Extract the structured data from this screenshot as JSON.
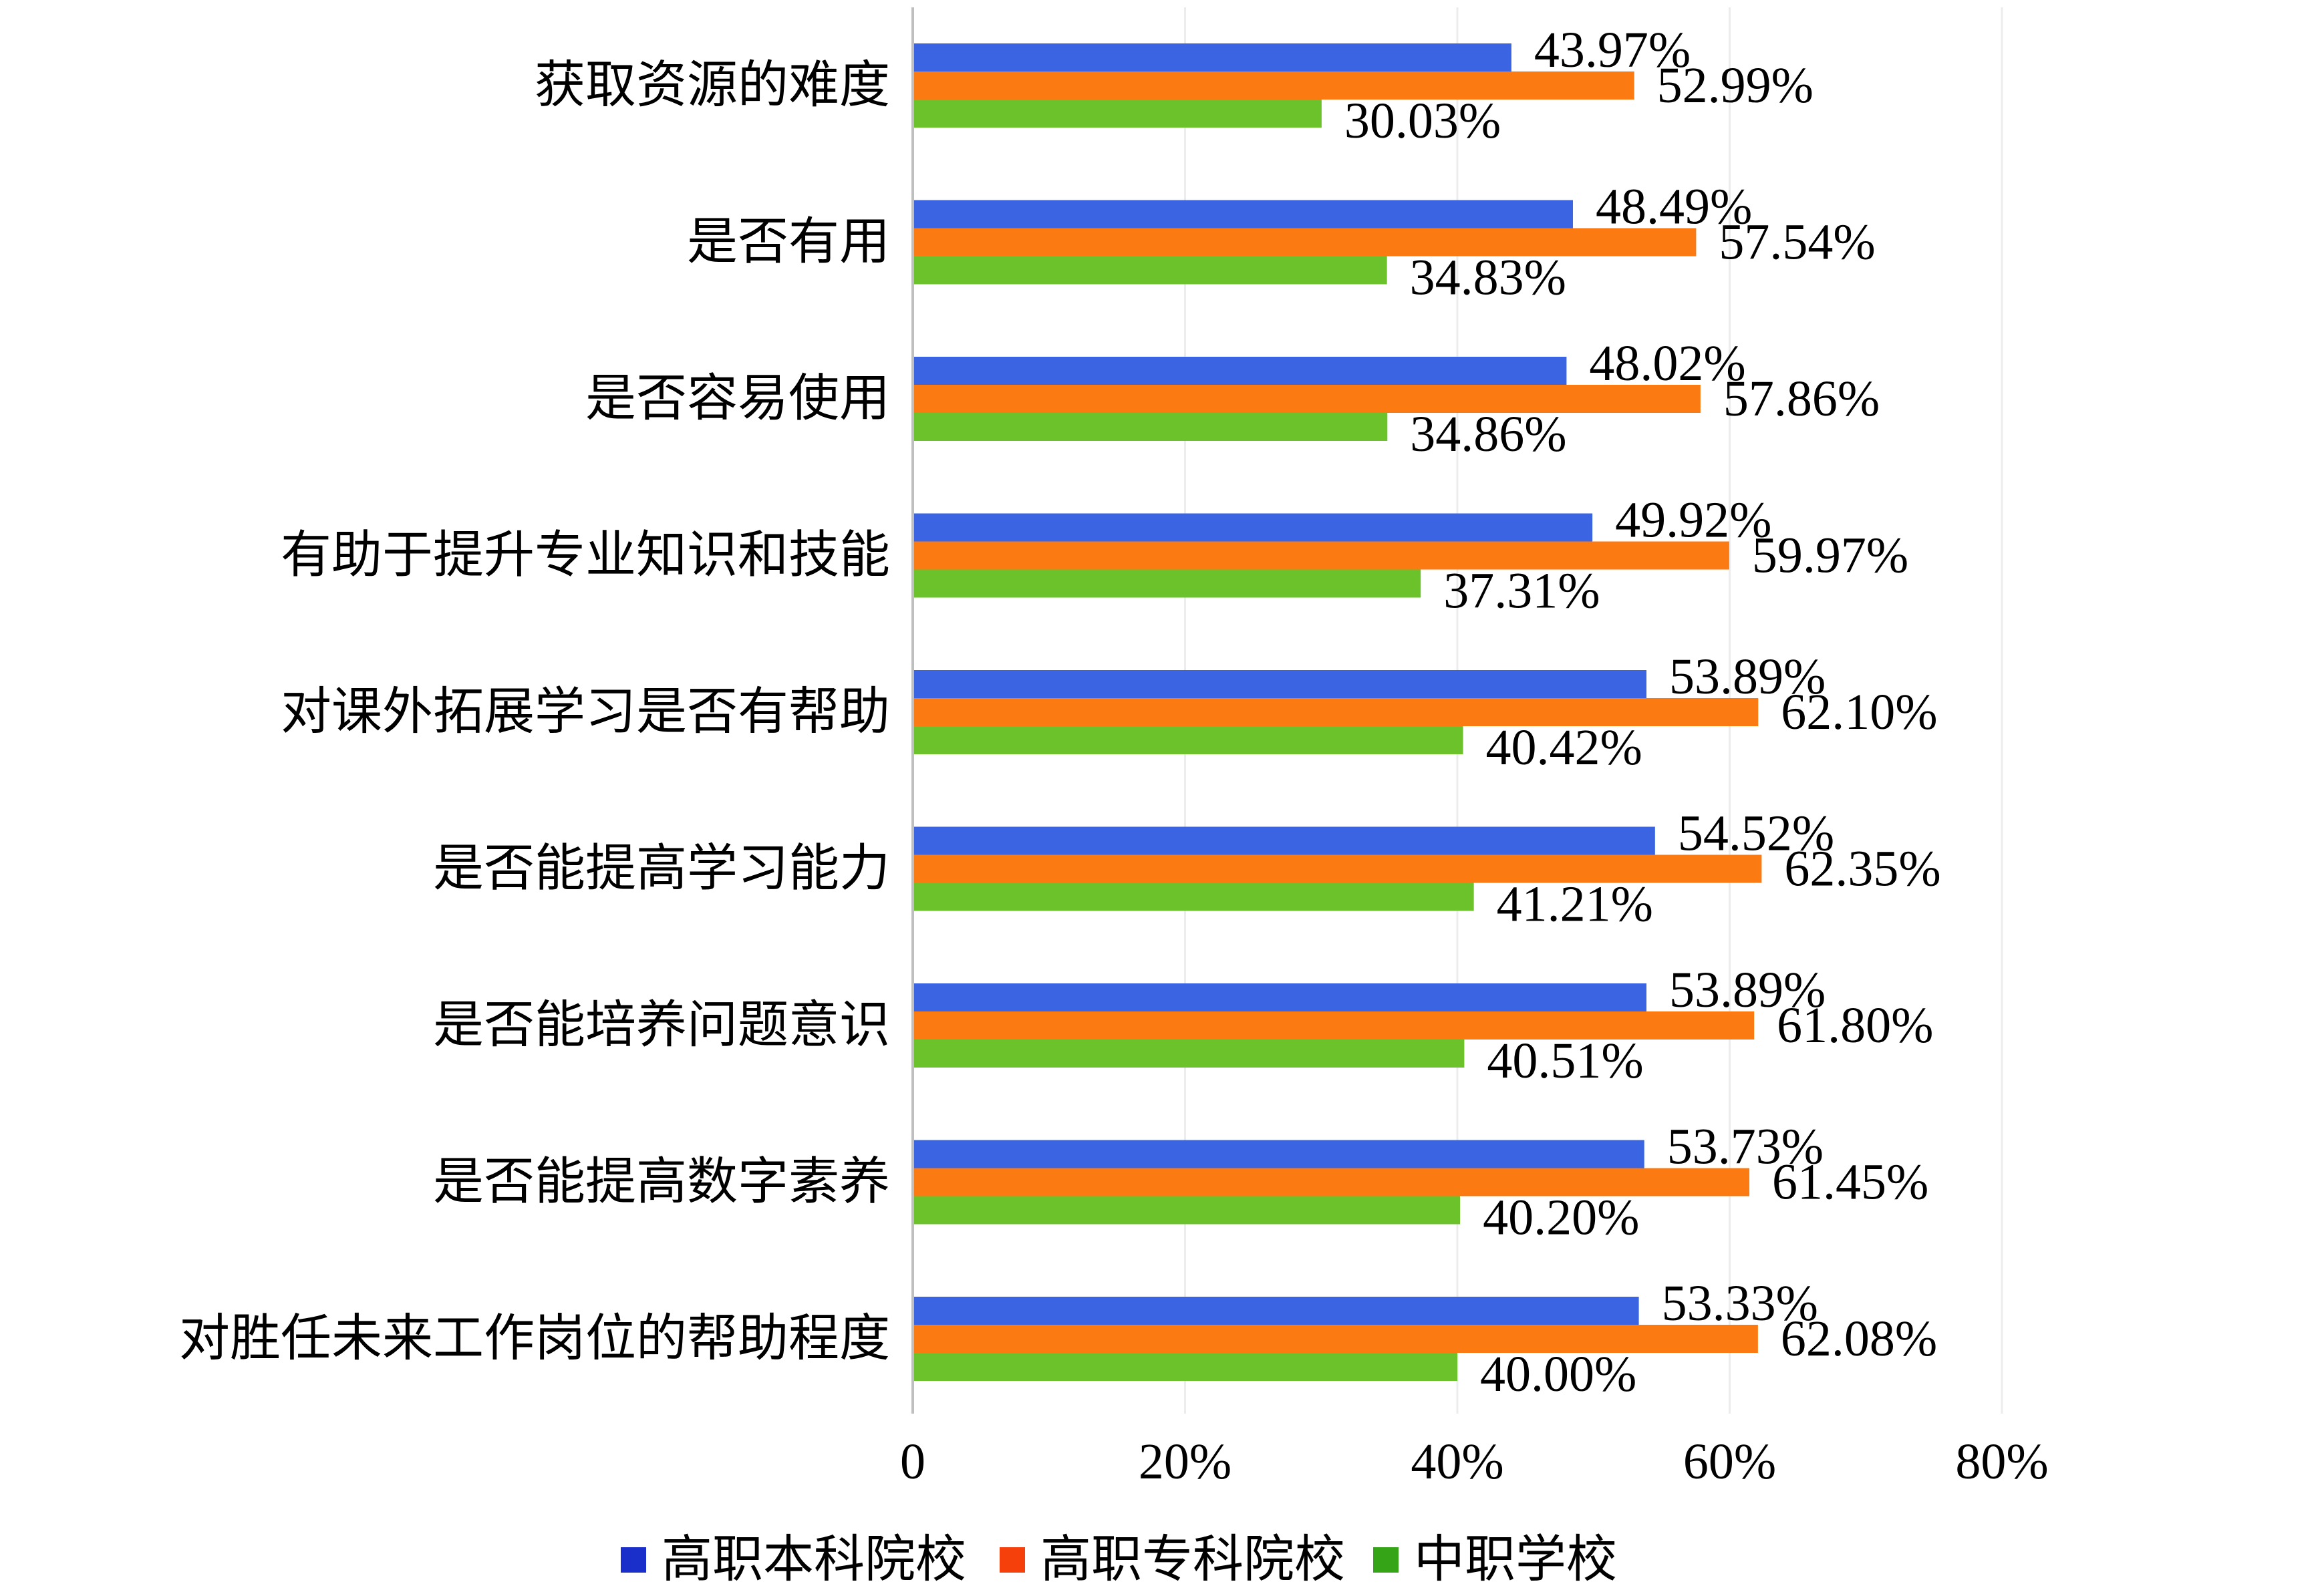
{
  "chart_data": {
    "type": "bar",
    "orientation": "horizontal",
    "categories": [
      "获取资源的难度",
      "是否有用",
      "是否容易使用",
      "有助于提升专业知识和技能",
      "对课外拓展学习是否有帮助",
      "是否能提高学习能力",
      "是否能培养问题意识",
      "是否能提高数字素养",
      "对胜任未来工作岗位的帮助程度"
    ],
    "series": [
      {
        "name": "高职本科院校",
        "color": "#3b64e2",
        "legend_color": "#1a2fc9",
        "values": [
          43.97,
          48.49,
          48.02,
          49.92,
          53.89,
          54.52,
          53.89,
          53.73,
          53.33
        ],
        "data_labels": [
          "43.97%",
          "48.49%",
          "48.02%",
          "49.92%",
          "53.89%",
          "54.52%",
          "53.89%",
          "53.73%",
          "53.33%"
        ]
      },
      {
        "name": "高职专科院校",
        "color": "#fb7b12",
        "legend_color": "#f5400c",
        "values": [
          52.99,
          57.54,
          57.86,
          59.97,
          62.1,
          62.35,
          61.8,
          61.45,
          62.08
        ],
        "data_labels": [
          "52.99%",
          "57.54%",
          "57.86%",
          "59.97%",
          "62.10%",
          "62.35%",
          "61.80%",
          "61.45%",
          "62.08%"
        ]
      },
      {
        "name": "中职学校",
        "color": "#6cc22b",
        "legend_color": "#35a416",
        "values": [
          30.03,
          34.83,
          34.86,
          37.31,
          40.42,
          41.21,
          40.51,
          40.2,
          40.0
        ],
        "data_labels": [
          "30.03%",
          "34.83%",
          "34.86%",
          "37.31%",
          "40.42%",
          "41.21%",
          "40.51%",
          "40.20%",
          "40.00%"
        ]
      }
    ],
    "xlim": [
      0,
      80
    ],
    "x_ticks": [
      0,
      20,
      40,
      60,
      80
    ],
    "x_tick_labels": [
      "0",
      "20%",
      "40%",
      "60%",
      "80%"
    ],
    "grid": true,
    "legend_position": "bottom",
    "gridline_color": "#ececec",
    "axis_color": "#bfbfbf"
  }
}
